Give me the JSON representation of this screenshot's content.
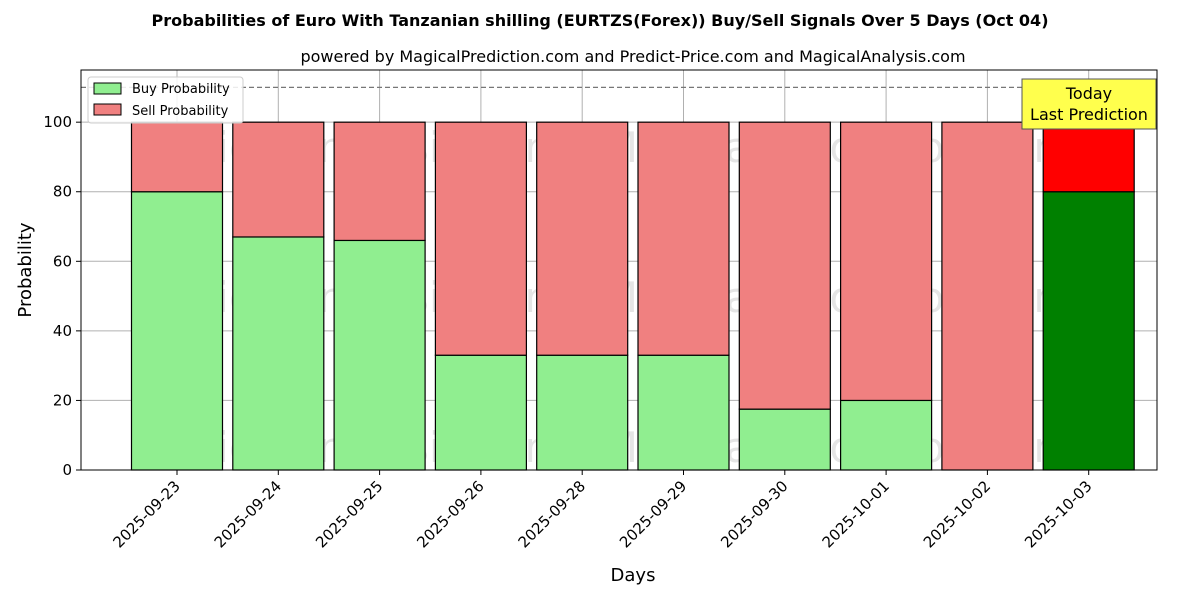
{
  "chart_data": {
    "type": "bar",
    "stacked": true,
    "title": "Probabilities of Euro With Tanzanian shilling (EURTZS(Forex)) Buy/Sell Signals Over 5 Days (Oct 04)",
    "subtitle": "powered by MagicalPrediction.com and Predict-Price.com and MagicalAnalysis.com",
    "xlabel": "Days",
    "ylabel": "Probability",
    "ylim": [
      0,
      115
    ],
    "yticks": [
      0,
      20,
      40,
      60,
      80,
      100
    ],
    "reference_line": 110,
    "grid": true,
    "legend_placement": "top-left",
    "categories": [
      "2025-09-23",
      "2025-09-24",
      "2025-09-25",
      "2025-09-26",
      "2025-09-28",
      "2025-09-29",
      "2025-09-30",
      "2025-10-01",
      "2025-10-02",
      "2025-10-03"
    ],
    "series": [
      {
        "name": "Buy Probability",
        "values": [
          80,
          67,
          66,
          33,
          33,
          33,
          17.5,
          20,
          0,
          80
        ],
        "color": "#90ee90",
        "highlight_color": "#008000"
      },
      {
        "name": "Sell Probability",
        "values": [
          20,
          33,
          34,
          67,
          67,
          67,
          82.5,
          80,
          100,
          20
        ],
        "color": "#f08080",
        "highlight_color": "#ff0000"
      }
    ],
    "highlight_index": 9,
    "annotation": {
      "line1": "Today",
      "line2": "Last Prediction",
      "color": "#ffff4d"
    },
    "watermarks": [
      "MagicalAnalysis.com",
      "MagicalPrediction.com"
    ]
  }
}
